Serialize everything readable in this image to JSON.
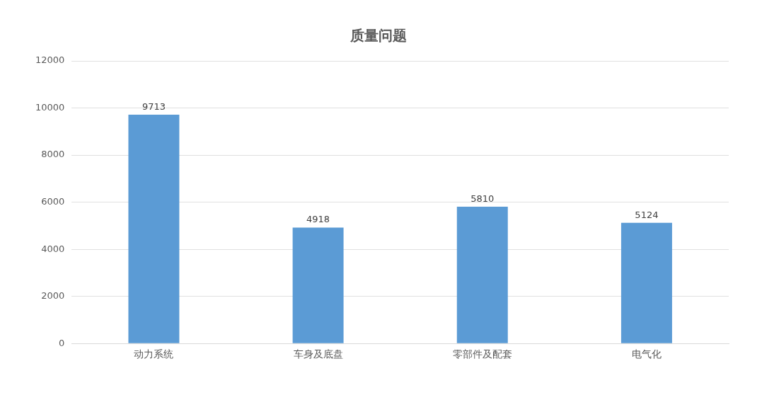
{
  "chart_data": {
    "type": "bar",
    "title": "质量问题",
    "categories": [
      "动力系统",
      "车身及底盘",
      "零部件及配套",
      "电气化"
    ],
    "values": [
      9713,
      4918,
      5810,
      5124
    ],
    "color": "#5b9bd5",
    "ylim": [
      0,
      12000
    ],
    "yticks": [
      0,
      2000,
      4000,
      6000,
      8000,
      10000,
      12000
    ],
    "grid": "y",
    "data_labels": true
  }
}
